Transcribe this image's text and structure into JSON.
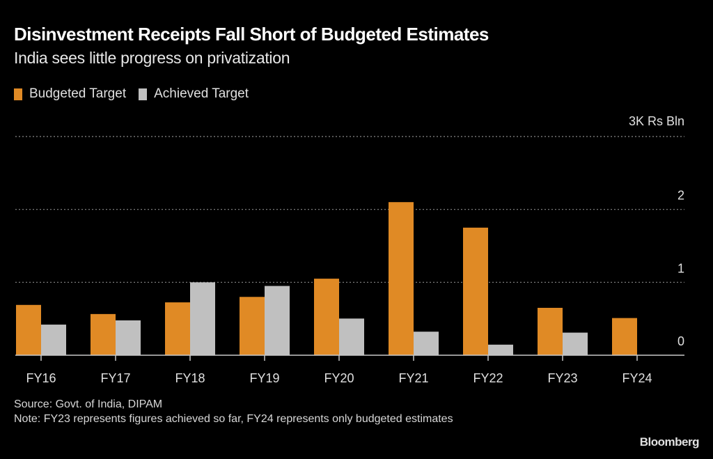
{
  "header": {
    "title": "Disinvestment Receipts Fall Short of Budgeted Estimates",
    "subtitle": "India sees little progress on privatization"
  },
  "legend": [
    {
      "label": "Budgeted Target",
      "color": "#e08a25"
    },
    {
      "label": "Achieved Target",
      "color": "#c0c0c0"
    }
  ],
  "footer": {
    "source": "Source: Govt. of India, DIPAM",
    "note": "Note: FY23 represents figures achieved so far, FY24 represents only budgeted estimates",
    "brand": "Bloomberg"
  },
  "chart_data": {
    "type": "bar",
    "title": "Disinvestment Receipts Fall Short of Budgeted Estimates",
    "subtitle": "India sees little progress on privatization",
    "xlabel": "",
    "ylabel": "Rs Bln",
    "unit_label": "3K Rs Bln",
    "categories": [
      "FY16",
      "FY17",
      "FY18",
      "FY19",
      "FY20",
      "FY21",
      "FY22",
      "FY23",
      "FY24"
    ],
    "series": [
      {
        "name": "Budgeted Target",
        "color": "#e08a25",
        "values": [
          690,
          565,
          725,
          800,
          1050,
          2100,
          1750,
          650,
          510
        ]
      },
      {
        "name": "Achieved Target",
        "color": "#c0c0c0",
        "values": [
          420,
          478,
          1000,
          950,
          503,
          323,
          145,
          310,
          null
        ]
      }
    ],
    "ylim": [
      0,
      3000
    ],
    "yticks": [
      0,
      1000,
      2000,
      3000
    ],
    "ytick_labels": [
      "0",
      "1",
      "2",
      "3K Rs Bln"
    ],
    "grid": true,
    "legend_position": "top-left"
  }
}
